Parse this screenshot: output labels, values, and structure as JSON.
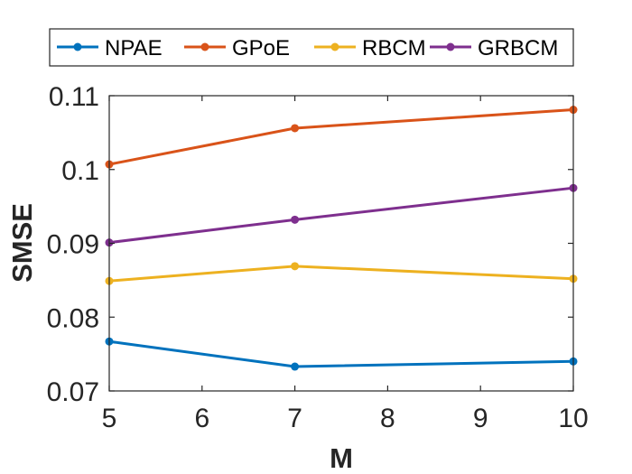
{
  "chart_data": {
    "type": "line",
    "title": "",
    "xlabel": "M",
    "ylabel": "SMSE",
    "x": [
      5,
      7,
      10
    ],
    "xlim": [
      5,
      10
    ],
    "ylim": [
      0.07,
      0.11
    ],
    "xticks": [
      5,
      6,
      7,
      8,
      9,
      10
    ],
    "yticks": [
      0.07,
      0.08,
      0.09,
      0.1,
      0.11
    ],
    "xtick_labels": [
      "5",
      "6",
      "7",
      "8",
      "9",
      "10"
    ],
    "ytick_labels": [
      "0.07",
      "0.08",
      "0.09",
      "0.1",
      "0.11"
    ],
    "grid": false,
    "legend_position": "top",
    "series": [
      {
        "name": "NPAE",
        "color": "#0072BD",
        "values": [
          0.0767,
          0.0733,
          0.074
        ]
      },
      {
        "name": "GPoE",
        "color": "#D95319",
        "values": [
          0.1007,
          0.1056,
          0.1081
        ]
      },
      {
        "name": "RBCM",
        "color": "#EDB120",
        "values": [
          0.0849,
          0.0869,
          0.0852
        ]
      },
      {
        "name": "GRBCM",
        "color": "#7E2F8E",
        "values": [
          0.0901,
          0.0932,
          0.0975
        ]
      }
    ]
  }
}
